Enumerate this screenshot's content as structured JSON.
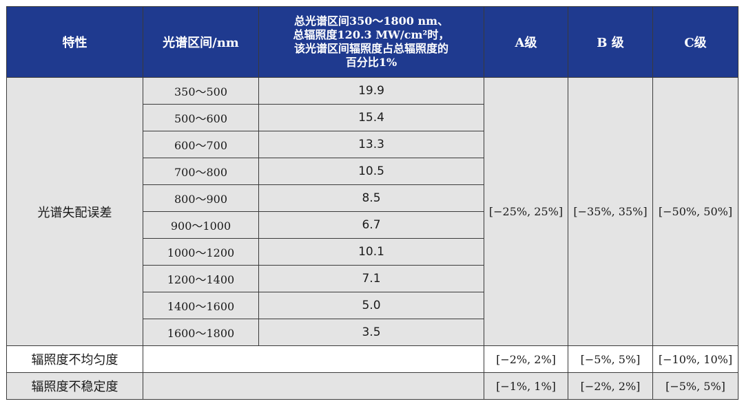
{
  "header": {
    "property": "特性",
    "spectral_range": "光谱区间/nm",
    "ratio_lines": [
      "总光谱区间350～1800 nm、",
      "总辐照度120.3 MW/cm²时，",
      "该光谱区间辐照度占总辐照度的",
      "百分比1%"
    ],
    "grade_a": "A级",
    "grade_b": "B 级",
    "grade_c": "C级"
  },
  "spectral_mismatch": {
    "label": "光谱失配误差",
    "rows": [
      {
        "range": "350～500",
        "percent": "19.9"
      },
      {
        "range": "500～600",
        "percent": "15.4"
      },
      {
        "range": "600～700",
        "percent": "13.3"
      },
      {
        "range": "700～800",
        "percent": "10.5"
      },
      {
        "range": "800～900",
        "percent": "8.5"
      },
      {
        "range": "900～1000",
        "percent": "6.7"
      },
      {
        "range": "1000～1200",
        "percent": "10.1"
      },
      {
        "range": "1200～1400",
        "percent": "7.1"
      },
      {
        "range": "1400～1600",
        "percent": "5.0"
      },
      {
        "range": "1600～1800",
        "percent": "3.5"
      }
    ],
    "grade_a": "[−25%,  25%]",
    "grade_b": "[−35%, 35%]",
    "grade_c": "[−50%, 50%]"
  },
  "non_uniformity": {
    "label": "辐照度不均匀度",
    "grade_a": "[−2%, 2%]",
    "grade_b": "[−5%, 5%]",
    "grade_c": "[−10%, 10%]"
  },
  "instability": {
    "label": "辐照度不稳定度",
    "grade_a": "[−1%, 1%]",
    "grade_b": "[−2%, 2%]",
    "grade_c": "[−5%, 5%]"
  }
}
